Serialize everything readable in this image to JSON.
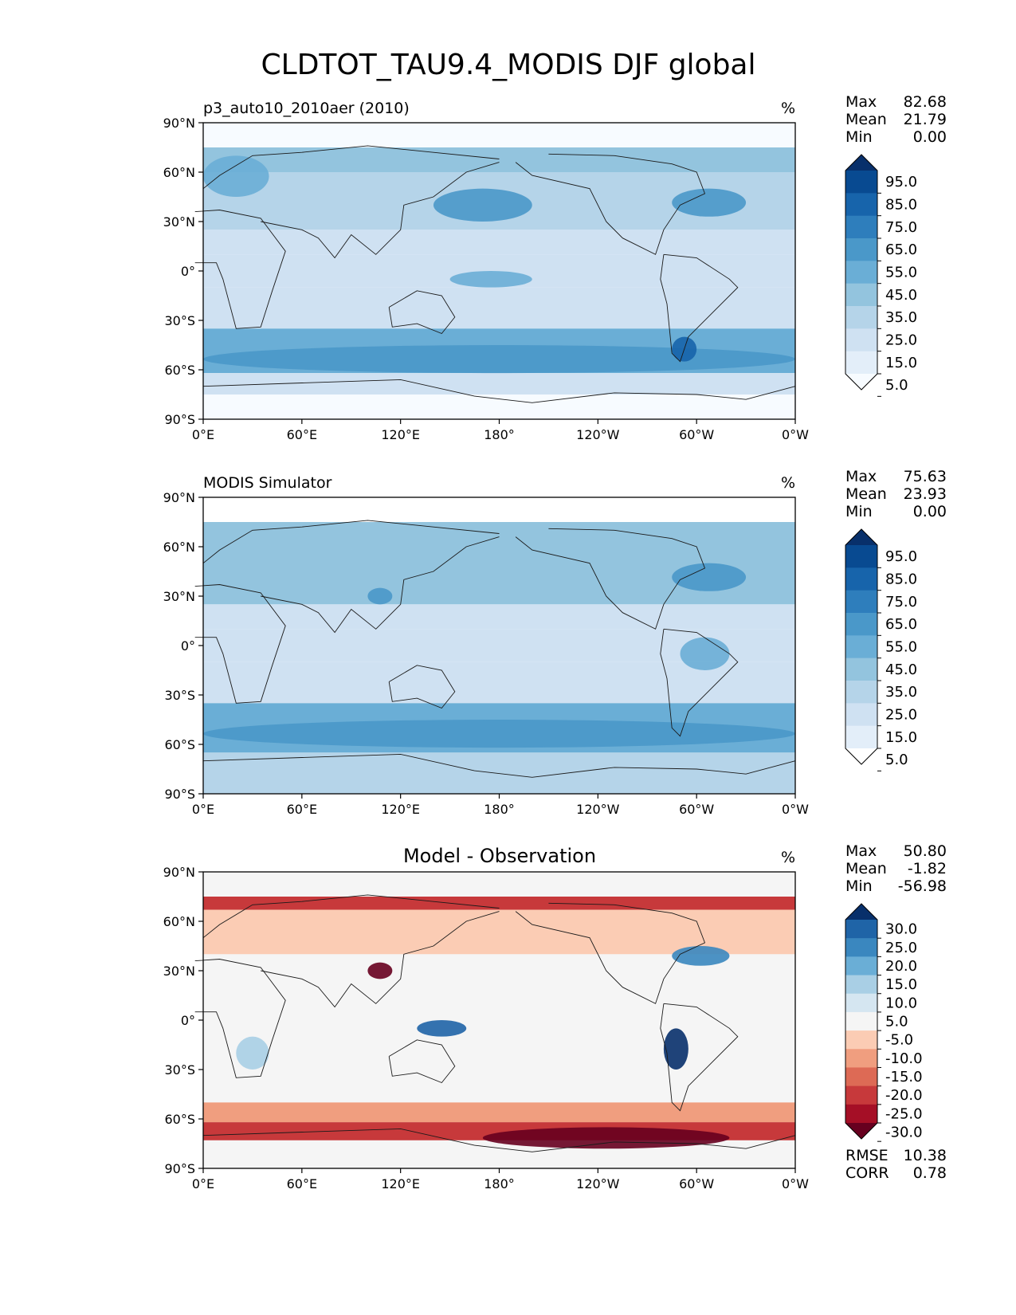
{
  "title": "CLDTOT_TAU9.4_MODIS DJF global",
  "lat_ticks": [
    "90°N",
    "60°N",
    "30°N",
    "0°",
    "30°S",
    "60°S",
    "90°S"
  ],
  "lon_ticks": [
    "0°E",
    "60°E",
    "120°E",
    "180°",
    "120°W",
    "60°W",
    "0°W"
  ],
  "panels": [
    {
      "id": "test",
      "title": "p3_auto10_2010aer (2010)",
      "title_center": "",
      "units": "%",
      "stats": [
        [
          "Max",
          "82.68"
        ],
        [
          "Mean",
          "21.79"
        ],
        [
          "Min",
          "0.00"
        ]
      ],
      "cbar_labels": [
        "95.0",
        "85.0",
        "75.0",
        "65.0",
        "55.0",
        "45.0",
        "35.0",
        "25.0",
        "15.0",
        "5.0"
      ],
      "cbar_colors": [
        "#f7fbff",
        "#e3eef9",
        "#cfe1f2",
        "#b5d4e9",
        "#93c4de",
        "#6aaed6",
        "#4a98c9",
        "#2e7ebc",
        "#1764ab",
        "#084a91",
        "#08306b"
      ],
      "footer": []
    },
    {
      "id": "ref",
      "title": "MODIS Simulator",
      "title_center": "",
      "units": "%",
      "stats": [
        [
          "Max",
          "75.63"
        ],
        [
          "Mean",
          "23.93"
        ],
        [
          "Min",
          "0.00"
        ]
      ],
      "cbar_labels": [
        "95.0",
        "85.0",
        "75.0",
        "65.0",
        "55.0",
        "45.0",
        "35.0",
        "25.0",
        "15.0",
        "5.0"
      ],
      "cbar_colors": [
        "#ffffff",
        "#e3eef9",
        "#cfe1f2",
        "#b5d4e9",
        "#93c4de",
        "#6aaed6",
        "#4a98c9",
        "#2e7ebc",
        "#1764ab",
        "#084a91",
        "#08306b"
      ],
      "footer": []
    },
    {
      "id": "diff",
      "title": "",
      "title_center": "Model - Observation",
      "units": "%",
      "stats": [
        [
          "Max",
          "50.80"
        ],
        [
          "Mean",
          "-1.82"
        ],
        [
          "Min",
          "-56.98"
        ]
      ],
      "cbar_labels": [
        "30.0",
        "25.0",
        "20.0",
        "15.0",
        "10.0",
        "5.0",
        "-5.0",
        "-10.0",
        "-15.0",
        "-20.0",
        "-25.0",
        "-30.0"
      ],
      "cbar_colors": [
        "#67001f",
        "#a50f26",
        "#c7393b",
        "#dd6a55",
        "#f09e7f",
        "#fbccb4",
        "#f5f5f5",
        "#d5e6f1",
        "#a9cfe5",
        "#6aaed6",
        "#3a87bf",
        "#1f64a7",
        "#08306b"
      ],
      "footer": [
        [
          "RMSE",
          "10.38"
        ],
        [
          "CORR",
          "0.78"
        ]
      ]
    }
  ],
  "chart_data": [
    {
      "type": "heatmap",
      "projection": "PlateCarree",
      "title": "p3_auto10_2010aer (2010)",
      "units": "%",
      "xlim": [
        0,
        360
      ],
      "ylim": [
        -90,
        90
      ],
      "levels": [
        5,
        15,
        25,
        35,
        45,
        55,
        65,
        75,
        85,
        95
      ],
      "max": 82.68,
      "mean": 21.79,
      "min": 0.0,
      "zonal_bands": [
        {
          "lat": [
            60,
            75
          ],
          "value": 40
        },
        {
          "lat": [
            25,
            60
          ],
          "value": 32
        },
        {
          "lat": [
            10,
            25
          ],
          "value": 18
        },
        {
          "lat": [
            -10,
            10
          ],
          "value": 22
        },
        {
          "lat": [
            -35,
            -10
          ],
          "value": 15
        },
        {
          "lat": [
            -62,
            -35
          ],
          "value": 45
        },
        {
          "lat": [
            -75,
            -62
          ],
          "value": 22
        },
        {
          "lat": [
            -90,
            -75
          ],
          "value": 3
        }
      ],
      "features": [
        {
          "lon": [
            140,
            200
          ],
          "lat": [
            30,
            50
          ],
          "value": 55
        },
        {
          "lon": [
            285,
            330
          ],
          "lat": [
            33,
            50
          ],
          "value": 60
        },
        {
          "lon": [
            0,
            40
          ],
          "lat": [
            45,
            70
          ],
          "value": 50
        },
        {
          "lon": [
            150,
            200
          ],
          "lat": [
            -10,
            0
          ],
          "value": 50
        },
        {
          "lon": [
            0,
            360
          ],
          "lat": [
            -62,
            -45
          ],
          "value": 60
        },
        {
          "lon": [
            285,
            300
          ],
          "lat": [
            -55,
            -40
          ],
          "value": 75
        }
      ]
    },
    {
      "type": "heatmap",
      "projection": "PlateCarree",
      "title": "MODIS Simulator",
      "units": "%",
      "xlim": [
        0,
        360
      ],
      "ylim": [
        -90,
        90
      ],
      "levels": [
        5,
        15,
        25,
        35,
        45,
        55,
        65,
        75,
        85,
        95
      ],
      "max": 75.63,
      "mean": 23.93,
      "min": 0.0,
      "zonal_bands": [
        {
          "lat": [
            75,
            90
          ],
          "value": 0
        },
        {
          "lat": [
            60,
            75
          ],
          "value": 40
        },
        {
          "lat": [
            25,
            60
          ],
          "value": 35
        },
        {
          "lat": [
            10,
            25
          ],
          "value": 20
        },
        {
          "lat": [
            -10,
            10
          ],
          "value": 24
        },
        {
          "lat": [
            -35,
            -10
          ],
          "value": 22
        },
        {
          "lat": [
            -65,
            -35
          ],
          "value": 48
        },
        {
          "lat": [
            -90,
            -65
          ],
          "value": 25
        }
      ],
      "features": [
        {
          "lon": [
            100,
            115
          ],
          "lat": [
            25,
            35
          ],
          "value": 60
        },
        {
          "lon": [
            285,
            330
          ],
          "lat": [
            33,
            50
          ],
          "value": 55
        },
        {
          "lon": [
            290,
            320
          ],
          "lat": [
            -15,
            5
          ],
          "value": 45
        },
        {
          "lon": [
            0,
            360
          ],
          "lat": [
            -62,
            -45
          ],
          "value": 55
        }
      ]
    },
    {
      "type": "heatmap",
      "projection": "PlateCarree",
      "title": "Model - Observation",
      "units": "%",
      "xlim": [
        0,
        360
      ],
      "ylim": [
        -90,
        90
      ],
      "levels": [
        -30,
        -25,
        -20,
        -15,
        -10,
        -5,
        5,
        10,
        15,
        20,
        25,
        30
      ],
      "max": 50.8,
      "mean": -1.82,
      "min": -56.98,
      "rmse": 10.38,
      "corr": 0.78,
      "zonal_bands": [
        {
          "lat": [
            75,
            90
          ],
          "value": 0
        },
        {
          "lat": [
            67,
            75
          ],
          "value": -25
        },
        {
          "lat": [
            40,
            67
          ],
          "value": -10
        },
        {
          "lat": [
            20,
            40
          ],
          "value": -3
        },
        {
          "lat": [
            -20,
            20
          ],
          "value": 2
        },
        {
          "lat": [
            -50,
            -20
          ],
          "value": 0
        },
        {
          "lat": [
            -62,
            -50
          ],
          "value": -15
        },
        {
          "lat": [
            -73,
            -62
          ],
          "value": -25
        },
        {
          "lat": [
            -90,
            -73
          ],
          "value": -3
        }
      ],
      "features": [
        {
          "lon": [
            100,
            115
          ],
          "lat": [
            25,
            35
          ],
          "value": -35
        },
        {
          "lon": [
            285,
            320
          ],
          "lat": [
            33,
            45
          ],
          "value": 20
        },
        {
          "lon": [
            130,
            160
          ],
          "lat": [
            -10,
            0
          ],
          "value": 25
        },
        {
          "lon": [
            280,
            295
          ],
          "lat": [
            -30,
            -5
          ],
          "value": 30
        },
        {
          "lon": [
            170,
            320
          ],
          "lat": [
            -78,
            -65
          ],
          "value": -40
        },
        {
          "lon": [
            20,
            40
          ],
          "lat": [
            -30,
            -10
          ],
          "value": 10
        }
      ]
    }
  ]
}
